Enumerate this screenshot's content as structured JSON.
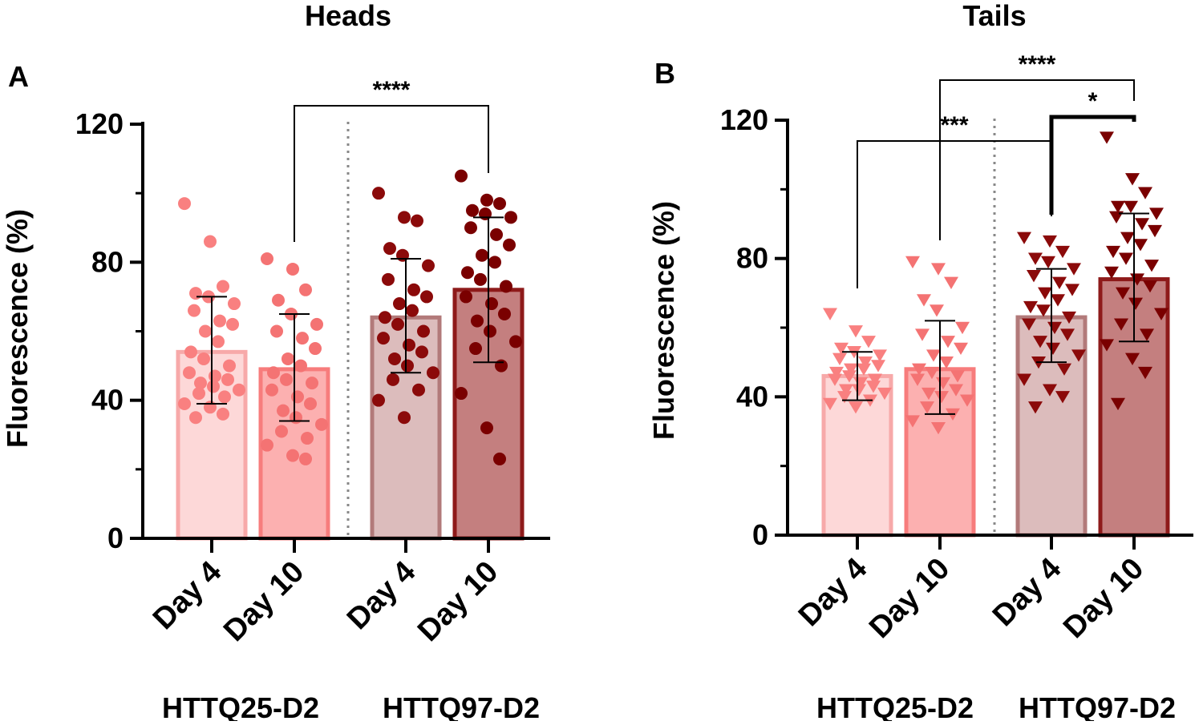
{
  "colors": {
    "q25_d4_fill": "#fdd8d8",
    "q25_d4_edge": "#f7a9a9",
    "q25_d4_point": "#f98080",
    "q25_d10_fill": "#fcb0b0",
    "q25_d10_edge": "#f77c7c",
    "q25_d10_point": "#f47373",
    "q97_d4_fill": "#dcbcbc",
    "q97_d4_edge": "#b27a7a",
    "q97_d4_point": "#8b0a0a",
    "q97_d10_fill": "#c47f7f",
    "q97_d10_edge": "#8e1a1a",
    "q97_d10_point": "#7a0000"
  },
  "chart_data": [
    {
      "type": "bar",
      "panel": "A",
      "title": "Heads",
      "ylabel": "Fluorescence (%)",
      "ylim": [
        0,
        120
      ],
      "yticks": [
        "0",
        "40",
        "80",
        "120"
      ],
      "categories": [
        "Day 4",
        "Day 10",
        "Day 4",
        "Day 10"
      ],
      "groups": [
        {
          "name": "HTTQ25-D2",
          "categories": [
            0,
            1
          ]
        },
        {
          "name": "HTTQ97-D2",
          "categories": [
            2,
            3
          ]
        }
      ],
      "marker": "circle",
      "bars": [
        {
          "mean": 54,
          "sd_low": 39,
          "sd_high": 70,
          "points": [
            97,
            86,
            73,
            71,
            70,
            68,
            66,
            63,
            62,
            60,
            57,
            54,
            52,
            50,
            48,
            47,
            46,
            45,
            44,
            43,
            42,
            41,
            39,
            38,
            36,
            35
          ]
        },
        {
          "mean": 49,
          "sd_low": 34,
          "sd_high": 65,
          "points": [
            81,
            78,
            72,
            69,
            65,
            62,
            60,
            58,
            55,
            52,
            50,
            48,
            46,
            45,
            43,
            41,
            39,
            37,
            35,
            33,
            31,
            29,
            27,
            24,
            23
          ]
        },
        {
          "mean": 64,
          "sd_low": 48,
          "sd_high": 81,
          "points": [
            100,
            93,
            92,
            84,
            82,
            79,
            75,
            72,
            70,
            68,
            66,
            64,
            62,
            60,
            58,
            56,
            54,
            52,
            50,
            48,
            46,
            43,
            40,
            35
          ]
        },
        {
          "mean": 72,
          "sd_low": 51,
          "sd_high": 93,
          "points": [
            105,
            98,
            97,
            95,
            94,
            93,
            90,
            88,
            85,
            82,
            80,
            77,
            75,
            73,
            70,
            68,
            65,
            63,
            60,
            57,
            55,
            50,
            42,
            32,
            23
          ]
        }
      ],
      "significance": [
        {
          "from": 1,
          "to": 3,
          "label": "****"
        }
      ]
    },
    {
      "type": "bar",
      "panel": "B",
      "title": "Tails",
      "ylabel": "Fluorescence (%)",
      "ylim": [
        0,
        120
      ],
      "yticks": [
        "0",
        "40",
        "80",
        "120"
      ],
      "categories": [
        "Day 4",
        "Day 10",
        "Day 4",
        "Day 10"
      ],
      "groups": [
        {
          "name": "HTTQ25-D2",
          "categories": [
            0,
            1
          ]
        },
        {
          "name": "HTTQ97-D2",
          "categories": [
            2,
            3
          ]
        }
      ],
      "marker": "triangle-down",
      "bars": [
        {
          "mean": 46,
          "sd_low": 39,
          "sd_high": 53,
          "points": [
            64,
            59,
            56,
            54,
            53,
            52,
            51,
            50,
            49,
            48,
            48,
            47,
            46,
            45,
            45,
            44,
            43,
            42,
            42,
            41,
            40,
            39,
            38,
            37
          ]
        },
        {
          "mean": 48,
          "sd_low": 35,
          "sd_high": 62,
          "points": [
            79,
            77,
            73,
            68,
            65,
            60,
            58,
            56,
            54,
            52,
            50,
            48,
            47,
            46,
            45,
            44,
            42,
            41,
            40,
            39,
            37,
            35,
            33,
            31
          ]
        },
        {
          "mean": 63,
          "sd_low": 50,
          "sd_high": 77,
          "points": [
            86,
            85,
            82,
            80,
            79,
            77,
            75,
            73,
            71,
            70,
            68,
            66,
            65,
            63,
            61,
            60,
            58,
            56,
            54,
            52,
            50,
            48,
            45,
            42,
            40,
            37
          ]
        },
        {
          "mean": 74,
          "sd_low": 56,
          "sd_high": 93,
          "points": [
            115,
            103,
            99,
            95,
            95,
            93,
            92,
            90,
            88,
            86,
            84,
            82,
            80,
            78,
            76,
            74,
            72,
            70,
            67,
            64,
            61,
            58,
            55,
            51,
            47,
            38
          ]
        }
      ],
      "significance": [
        {
          "from": 0,
          "to": 2,
          "label": "***"
        },
        {
          "from": 1,
          "to": 3,
          "label": "****"
        },
        {
          "from": 2,
          "to": 3,
          "label": "*"
        }
      ]
    }
  ]
}
